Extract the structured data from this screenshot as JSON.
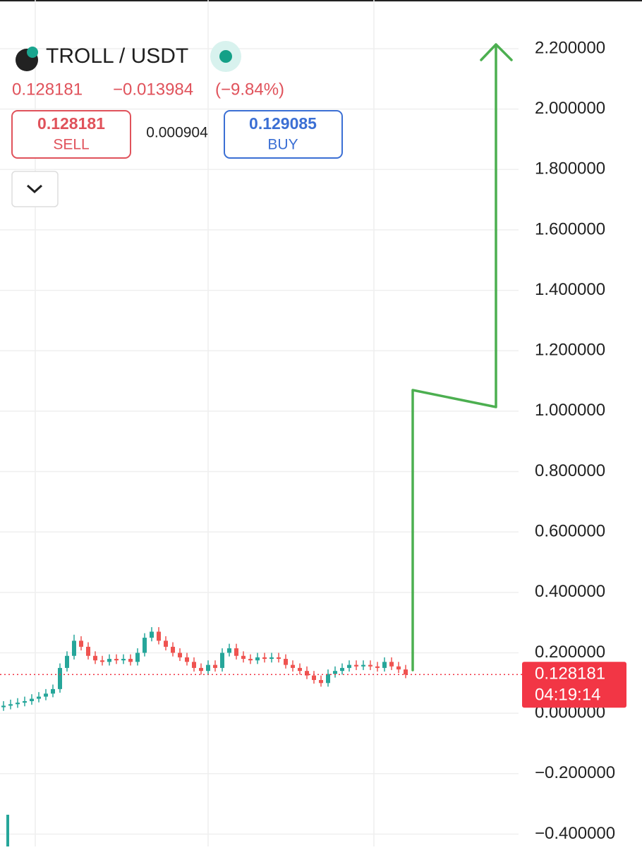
{
  "header": {
    "symbol": "TROLL / USDT",
    "price": "0.128181",
    "change": "−0.013984",
    "change_percent": "(−9.84%)",
    "sell_price": "0.128181",
    "sell_label": "SELL",
    "spread": "0.000904",
    "buy_price": "0.129085",
    "buy_label": "BUY"
  },
  "chart_data": {
    "type": "candlestick",
    "up_color": "#26a69a",
    "down_color": "#ef5350",
    "open": [
      0.02,
      0.025,
      0.03,
      0.035,
      0.04,
      0.048,
      0.055,
      0.065,
      0.08,
      0.15,
      0.19,
      0.24,
      0.22,
      0.19,
      0.175,
      0.17,
      0.18,
      0.175,
      0.18,
      0.17,
      0.2,
      0.25,
      0.27,
      0.24,
      0.22,
      0.2,
      0.185,
      0.17,
      0.15,
      0.14,
      0.16,
      0.15,
      0.2,
      0.215,
      0.19,
      0.18,
      0.175,
      0.185,
      0.18,
      0.185,
      0.18,
      0.16,
      0.15,
      0.14,
      0.125,
      0.11,
      0.1,
      0.13,
      0.14,
      0.15,
      0.16,
      0.155,
      0.16,
      0.155,
      0.15,
      0.17,
      0.155,
      0.145
    ],
    "high": [
      0.04,
      0.045,
      0.05,
      0.055,
      0.063,
      0.07,
      0.08,
      0.095,
      0.165,
      0.205,
      0.26,
      0.255,
      0.235,
      0.205,
      0.19,
      0.195,
      0.195,
      0.195,
      0.195,
      0.215,
      0.265,
      0.285,
      0.285,
      0.255,
      0.235,
      0.215,
      0.2,
      0.185,
      0.165,
      0.175,
      0.175,
      0.215,
      0.23,
      0.23,
      0.205,
      0.195,
      0.2,
      0.2,
      0.2,
      0.2,
      0.195,
      0.175,
      0.165,
      0.155,
      0.14,
      0.125,
      0.145,
      0.155,
      0.165,
      0.175,
      0.175,
      0.175,
      0.175,
      0.17,
      0.185,
      0.185,
      0.17,
      0.16
    ],
    "low": [
      0.008,
      0.013,
      0.018,
      0.023,
      0.028,
      0.036,
      0.043,
      0.053,
      0.068,
      0.138,
      0.178,
      0.208,
      0.178,
      0.163,
      0.158,
      0.158,
      0.163,
      0.163,
      0.158,
      0.158,
      0.188,
      0.238,
      0.228,
      0.208,
      0.188,
      0.173,
      0.158,
      0.138,
      0.128,
      0.128,
      0.138,
      0.138,
      0.188,
      0.178,
      0.168,
      0.163,
      0.163,
      0.168,
      0.168,
      0.168,
      0.148,
      0.138,
      0.128,
      0.113,
      0.098,
      0.088,
      0.088,
      0.118,
      0.128,
      0.138,
      0.143,
      0.143,
      0.143,
      0.138,
      0.138,
      0.143,
      0.133,
      0.116
    ],
    "close": [
      0.025,
      0.03,
      0.035,
      0.04,
      0.048,
      0.055,
      0.065,
      0.08,
      0.15,
      0.19,
      0.24,
      0.22,
      0.19,
      0.175,
      0.17,
      0.18,
      0.175,
      0.18,
      0.17,
      0.2,
      0.25,
      0.27,
      0.24,
      0.22,
      0.2,
      0.185,
      0.17,
      0.15,
      0.14,
      0.16,
      0.15,
      0.2,
      0.215,
      0.19,
      0.18,
      0.175,
      0.185,
      0.18,
      0.185,
      0.18,
      0.16,
      0.15,
      0.14,
      0.125,
      0.11,
      0.1,
      0.13,
      0.14,
      0.15,
      0.16,
      0.155,
      0.16,
      0.155,
      0.15,
      0.17,
      0.155,
      0.145,
      0.128
    ],
    "ylim": [
      -0.441,
      2.361
    ],
    "yticks": [
      {
        "value": 2.2,
        "label": "2.200000"
      },
      {
        "value": 2.0,
        "label": "2.000000"
      },
      {
        "value": 1.8,
        "label": "1.800000"
      },
      {
        "value": 1.6,
        "label": "1.600000"
      },
      {
        "value": 1.4,
        "label": "1.400000"
      },
      {
        "value": 1.2,
        "label": "1.200000"
      },
      {
        "value": 1.0,
        "label": "1.000000"
      },
      {
        "value": 0.8,
        "label": "0.800000"
      },
      {
        "value": 0.6,
        "label": "0.600000"
      },
      {
        "value": 0.4,
        "label": "0.400000"
      },
      {
        "value": 0.2,
        "label": "0.200000"
      },
      {
        "value": 0,
        "label": "0.000000"
      },
      {
        "value": -0.2,
        "label": "−0.200000"
      },
      {
        "value": -0.4,
        "label": "−0.400000"
      }
    ],
    "grid": true,
    "last_price": 0.128181,
    "last_price_color": "#f23645",
    "countdown": "04:19:14"
  }
}
